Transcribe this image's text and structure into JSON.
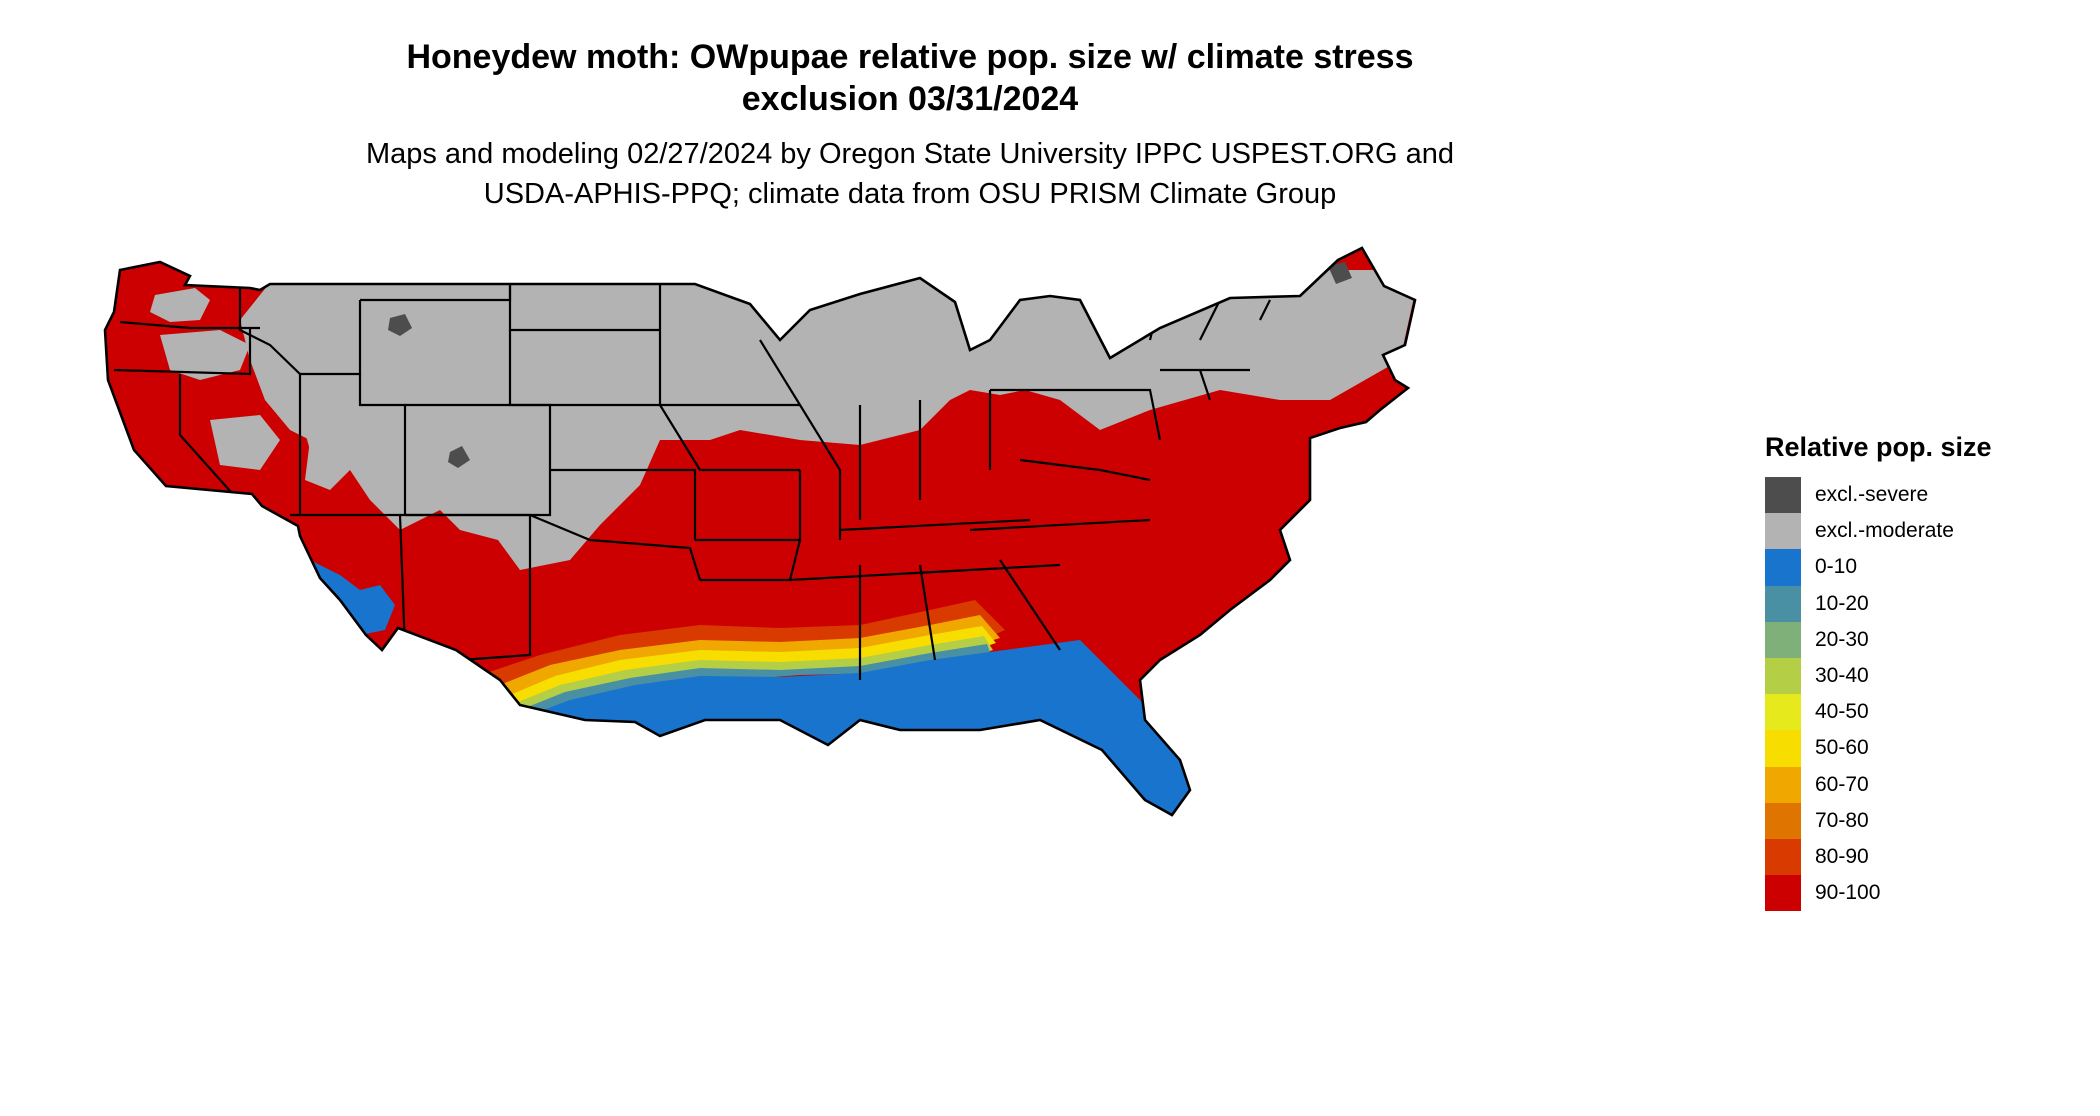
{
  "title": {
    "line1": "Honeydew moth: OWpupae relative pop. size w/ climate stress",
    "line2": "exclusion 03/31/2024"
  },
  "subtitle": {
    "line1": "Maps and modeling 02/27/2024 by Oregon State University IPPC USPEST.ORG and",
    "line2": "USDA-APHIS-PPQ; climate data from OSU PRISM Climate Group"
  },
  "legend": {
    "title": "Relative pop. size",
    "items": [
      {
        "label": "excl.-severe",
        "color": "#4d4d4d"
      },
      {
        "label": "excl.-moderate",
        "color": "#b3b3b3"
      },
      {
        "label": "0-10",
        "color": "#1874cd"
      },
      {
        "label": "10-20",
        "color": "#4a90a4"
      },
      {
        "label": "20-30",
        "color": "#7fb07a"
      },
      {
        "label": "30-40",
        "color": "#b4cf45"
      },
      {
        "label": "40-50",
        "color": "#e6ea1c"
      },
      {
        "label": "50-60",
        "color": "#f8de00"
      },
      {
        "label": "60-70",
        "color": "#f0a800"
      },
      {
        "label": "70-80",
        "color": "#e07400"
      },
      {
        "label": "80-90",
        "color": "#d83a00"
      },
      {
        "label": "90-100",
        "color": "#cc0000"
      }
    ]
  },
  "map": {
    "region": "Contiguous United States",
    "state_border_color": "#000000"
  }
}
